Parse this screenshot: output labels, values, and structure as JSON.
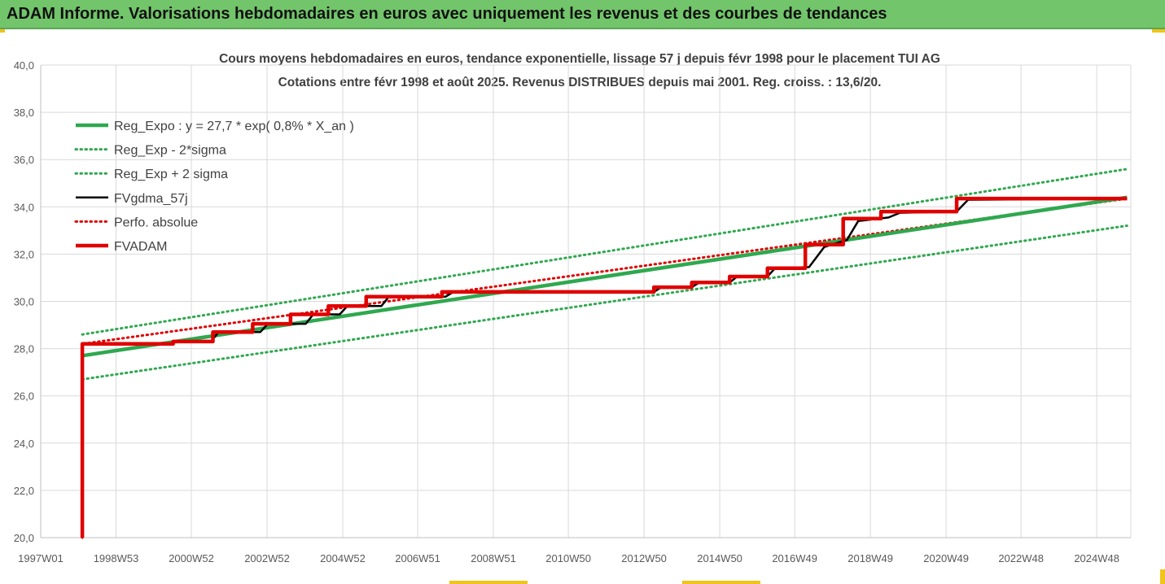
{
  "banner": {
    "title": "ADAM Informe. Valorisations hebdomadaires en euros avec uniquement les revenus et des courbes de tendances"
  },
  "colors": {
    "banner": "#72c56a",
    "green": "#2fa84f",
    "red": "#e00000",
    "black": "#000000",
    "grid": "#d9d9d9"
  },
  "chart_data": {
    "type": "line",
    "title_line1": "Cours moyens hebdomadaires en euros, tendance exponentielle, lissage 57 j depuis févr 1998 pour le placement TUI AG",
    "title_line2": "Cotations entre févr 1998 et août 2025. Revenus DISTRIBUES depuis mai 2001. Reg. croiss. : 13,6/20.",
    "xlabel": "",
    "ylabel": "",
    "x_range": [
      1997.0,
      2025.8
    ],
    "ylim": [
      20,
      40
    ],
    "y_ticks": [
      "20,0",
      "22,0",
      "24,0",
      "26,0",
      "28,0",
      "30,0",
      "32,0",
      "34,0",
      "36,0",
      "38,0",
      "40,0"
    ],
    "x_ticks": [
      {
        "label": "1997W01",
        "x": 1997.0
      },
      {
        "label": "1998W53",
        "x": 1998.99
      },
      {
        "label": "2000W52",
        "x": 2000.98
      },
      {
        "label": "2002W52",
        "x": 2002.98
      },
      {
        "label": "2004W52",
        "x": 2004.98
      },
      {
        "label": "2006W51",
        "x": 2006.96
      },
      {
        "label": "2008W51",
        "x": 2008.96
      },
      {
        "label": "2010W50",
        "x": 2010.94
      },
      {
        "label": "2012W50",
        "x": 2012.94
      },
      {
        "label": "2014W50",
        "x": 2014.94
      },
      {
        "label": "2016W49",
        "x": 2016.92
      },
      {
        "label": "2018W49",
        "x": 2018.92
      },
      {
        "label": "2020W49",
        "x": 2020.92
      },
      {
        "label": "2022W48",
        "x": 2022.9
      },
      {
        "label": "2024W48",
        "x": 2024.9
      }
    ],
    "grid": true,
    "legend_position": "top-left",
    "series": [
      {
        "name": "Reg_Expo : y = 27,7 * exp( 0,8% *  X_an )",
        "style": "solid-thick",
        "color": "#2fa84f",
        "points": [
          [
            1998.1,
            27.7
          ],
          [
            2025.7,
            34.4
          ]
        ]
      },
      {
        "name": "Reg_Exp - 2*sigma",
        "style": "dotted",
        "color": "#2fa84f",
        "points": [
          [
            1998.1,
            26.7
          ],
          [
            2025.7,
            33.2
          ]
        ]
      },
      {
        "name": "Reg_Exp + 2 sigma",
        "style": "dotted",
        "color": "#2fa84f",
        "points": [
          [
            1998.1,
            28.6
          ],
          [
            2025.7,
            35.6
          ]
        ]
      },
      {
        "name": "FVgdma_57j",
        "style": "solid",
        "color": "#000000",
        "points": [
          [
            1998.1,
            28.2
          ],
          [
            2000.4,
            28.2
          ],
          [
            2000.6,
            28.3
          ],
          [
            2001.5,
            28.3
          ],
          [
            2001.7,
            28.7
          ],
          [
            2002.8,
            28.7
          ],
          [
            2003.0,
            29.05
          ],
          [
            2004.0,
            29.05
          ],
          [
            2004.2,
            29.45
          ],
          [
            2004.9,
            29.45
          ],
          [
            2005.1,
            29.8
          ],
          [
            2006.0,
            29.8
          ],
          [
            2006.2,
            30.2
          ],
          [
            2007.7,
            30.2
          ],
          [
            2007.9,
            30.4
          ],
          [
            2013.2,
            30.4
          ],
          [
            2013.4,
            30.6
          ],
          [
            2014.2,
            30.6
          ],
          [
            2014.4,
            30.8
          ],
          [
            2015.2,
            30.8
          ],
          [
            2015.4,
            31.05
          ],
          [
            2016.2,
            31.05
          ],
          [
            2016.4,
            31.4
          ],
          [
            2017.3,
            31.45
          ],
          [
            2017.7,
            32.3
          ],
          [
            2018.3,
            32.6
          ],
          [
            2018.6,
            33.4
          ],
          [
            2019.4,
            33.55
          ],
          [
            2019.7,
            33.75
          ],
          [
            2021.2,
            33.8
          ],
          [
            2021.5,
            34.3
          ],
          [
            2025.7,
            34.35
          ]
        ]
      },
      {
        "name": "Perfo. absolue",
        "style": "dotted",
        "color": "#e00000",
        "points": [
          [
            1998.1,
            20.0
          ],
          [
            1998.1,
            28.2
          ],
          [
            2025.7,
            34.35
          ]
        ]
      },
      {
        "name": "FVADAM",
        "style": "solid-thick",
        "color": "#e00000",
        "points": [
          [
            1998.1,
            20.0
          ],
          [
            1998.1,
            28.2
          ],
          [
            2000.5,
            28.2
          ],
          [
            2000.5,
            28.3
          ],
          [
            2001.55,
            28.3
          ],
          [
            2001.55,
            28.7
          ],
          [
            2002.6,
            28.7
          ],
          [
            2002.6,
            29.05
          ],
          [
            2003.6,
            29.05
          ],
          [
            2003.6,
            29.45
          ],
          [
            2004.6,
            29.45
          ],
          [
            2004.6,
            29.8
          ],
          [
            2005.6,
            29.8
          ],
          [
            2005.6,
            30.2
          ],
          [
            2007.6,
            30.2
          ],
          [
            2007.6,
            30.4
          ],
          [
            2013.2,
            30.4
          ],
          [
            2013.2,
            30.6
          ],
          [
            2014.2,
            30.6
          ],
          [
            2014.2,
            30.8
          ],
          [
            2015.2,
            30.8
          ],
          [
            2015.2,
            31.05
          ],
          [
            2016.2,
            31.05
          ],
          [
            2016.2,
            31.4
          ],
          [
            2017.2,
            31.4
          ],
          [
            2017.2,
            32.4
          ],
          [
            2018.2,
            32.4
          ],
          [
            2018.2,
            33.5
          ],
          [
            2019.2,
            33.5
          ],
          [
            2019.2,
            33.8
          ],
          [
            2021.2,
            33.8
          ],
          [
            2021.2,
            34.35
          ],
          [
            2025.7,
            34.35
          ]
        ]
      }
    ]
  }
}
